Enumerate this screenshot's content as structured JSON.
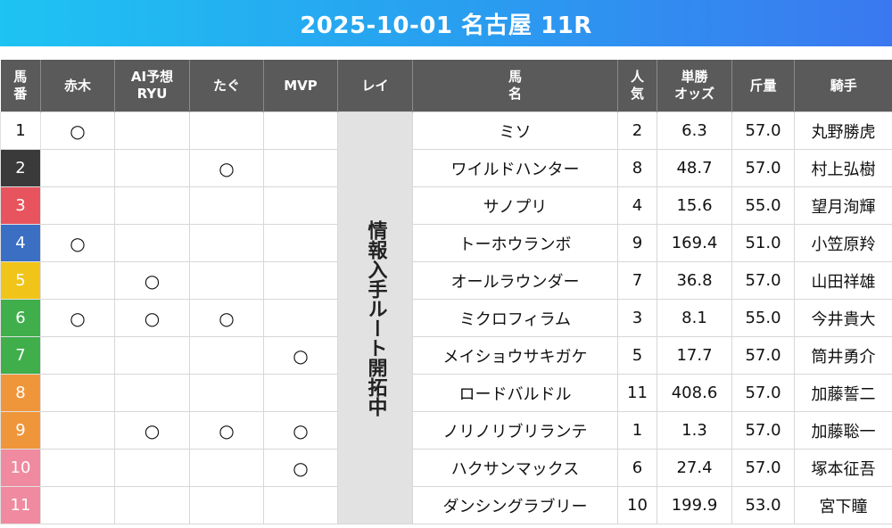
{
  "title": "2025-10-01 名古屋 11R",
  "headers": {
    "umaban": "馬\n番",
    "akagi": "赤木",
    "ai": "AI予想\nRYU",
    "tagu": "たぐ",
    "mvp": "MVP",
    "rei": "レイ",
    "horse": "馬\n名",
    "ninki": "人\n気",
    "odds": "単勝\nオッズ",
    "kinryo": "斤量",
    "jockey": "騎手"
  },
  "rei_note": "情報入手ルート開拓中",
  "mark_symbol": "○",
  "colors": {
    "title_gradient_start": "#1ec3f2",
    "title_gradient_end": "#3b78f0",
    "header_bg": "#5a5a5a",
    "rei_bg": "#e2e2e2"
  },
  "rows": [
    {
      "num": "1",
      "bg": "#ffffff",
      "fg": "#111111",
      "akagi": "○",
      "ai": "",
      "tagu": "",
      "mvp": "",
      "horse": "ミソ",
      "ninki": "2",
      "odds": "6.3",
      "kinryo": "57.0",
      "jockey": "丸野勝虎"
    },
    {
      "num": "2",
      "bg": "#3a3a3a",
      "fg": "#ffffff",
      "akagi": "",
      "ai": "",
      "tagu": "○",
      "mvp": "",
      "horse": "ワイルドハンター",
      "ninki": "8",
      "odds": "48.7",
      "kinryo": "57.0",
      "jockey": "村上弘樹"
    },
    {
      "num": "3",
      "bg": "#e8545e",
      "fg": "#ffffff",
      "akagi": "",
      "ai": "",
      "tagu": "",
      "mvp": "",
      "horse": "サノプリ",
      "ninki": "4",
      "odds": "15.6",
      "kinryo": "55.0",
      "jockey": "望月洵輝"
    },
    {
      "num": "4",
      "bg": "#3b6fc4",
      "fg": "#ffffff",
      "akagi": "○",
      "ai": "",
      "tagu": "",
      "mvp": "",
      "horse": "トーホウランボ",
      "ninki": "9",
      "odds": "169.4",
      "kinryo": "51.0",
      "jockey": "小笠原羚"
    },
    {
      "num": "5",
      "bg": "#f0c419",
      "fg": "#ffffff",
      "akagi": "",
      "ai": "○",
      "tagu": "",
      "mvp": "",
      "horse": "オールラウンダー",
      "ninki": "7",
      "odds": "36.8",
      "kinryo": "57.0",
      "jockey": "山田祥雄"
    },
    {
      "num": "6",
      "bg": "#3fae4b",
      "fg": "#ffffff",
      "akagi": "○",
      "ai": "○",
      "tagu": "○",
      "mvp": "",
      "horse": "ミクロフィラム",
      "ninki": "3",
      "odds": "8.1",
      "kinryo": "55.0",
      "jockey": "今井貴大"
    },
    {
      "num": "7",
      "bg": "#3fae4b",
      "fg": "#ffffff",
      "akagi": "",
      "ai": "",
      "tagu": "",
      "mvp": "○",
      "horse": "メイショウサキガケ",
      "ninki": "5",
      "odds": "17.7",
      "kinryo": "57.0",
      "jockey": "筒井勇介"
    },
    {
      "num": "8",
      "bg": "#f0963a",
      "fg": "#ffffff",
      "akagi": "",
      "ai": "",
      "tagu": "",
      "mvp": "",
      "horse": "ロードバルドル",
      "ninki": "11",
      "odds": "408.6",
      "kinryo": "57.0",
      "jockey": "加藤誓二"
    },
    {
      "num": "9",
      "bg": "#f0963a",
      "fg": "#ffffff",
      "akagi": "",
      "ai": "○",
      "tagu": "○",
      "mvp": "○",
      "horse": "ノリノリブリランテ",
      "ninki": "1",
      "odds": "1.3",
      "kinryo": "57.0",
      "jockey": "加藤聡一"
    },
    {
      "num": "10",
      "bg": "#f08aa0",
      "fg": "#ffffff",
      "akagi": "",
      "ai": "",
      "tagu": "",
      "mvp": "○",
      "horse": "ハクサンマックス",
      "ninki": "6",
      "odds": "27.4",
      "kinryo": "57.0",
      "jockey": "塚本征吾"
    },
    {
      "num": "11",
      "bg": "#f08aa0",
      "fg": "#ffffff",
      "akagi": "",
      "ai": "",
      "tagu": "",
      "mvp": "",
      "horse": "ダンシングラブリー",
      "ninki": "10",
      "odds": "199.9",
      "kinryo": "53.0",
      "jockey": "宮下瞳"
    }
  ]
}
